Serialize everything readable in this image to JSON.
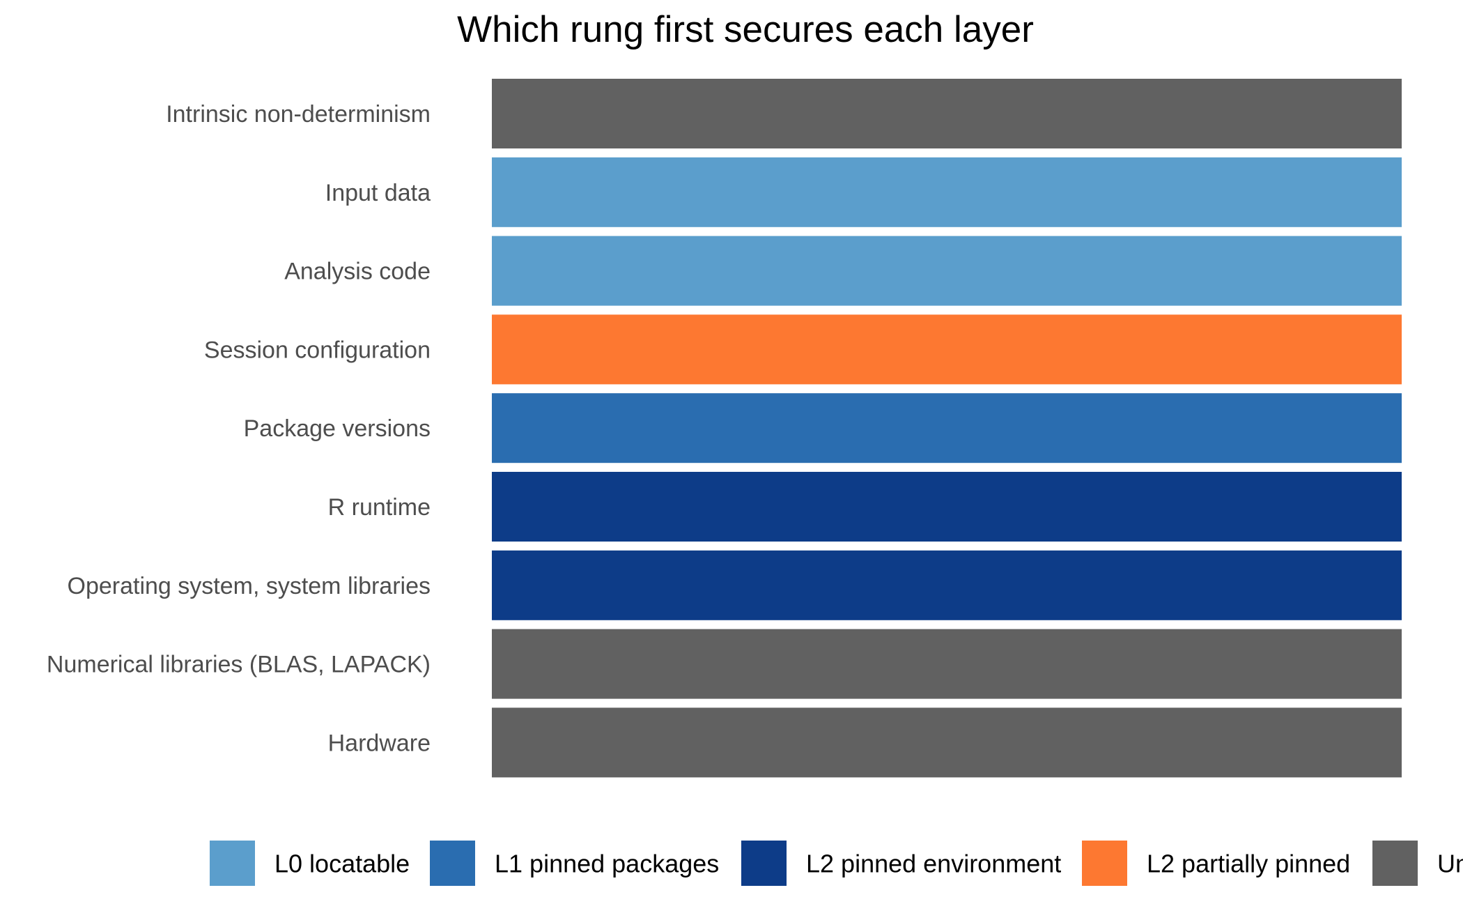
{
  "chart_data": {
    "type": "bar",
    "orientation": "horizontal",
    "title": "Which rung first secures each layer",
    "xlabel": "",
    "ylabel": "",
    "grid": false,
    "legend_position": "bottom",
    "categories": [
      "Intrinsic non-determinism",
      "Input data",
      "Analysis code",
      "Session configuration",
      "Package versions",
      "R runtime",
      "Operating system, system libraries",
      "Numerical libraries (BLAS, LAPACK)",
      "Hardware"
    ],
    "values": [
      1,
      1,
      1,
      1,
      1,
      1,
      1,
      1,
      1
    ],
    "rung": [
      "Un",
      "L0 locatable",
      "L0 locatable",
      "L2 partially pinned",
      "L1 pinned packages",
      "L2 pinned environment",
      "L2 pinned environment",
      "Un",
      "Un"
    ],
    "legend": [
      {
        "label": "L0 locatable",
        "color": "#5b9ecc"
      },
      {
        "label": "L1 pinned packages",
        "color": "#2a6db0"
      },
      {
        "label": "L2 pinned environment",
        "color": "#0d3c88"
      },
      {
        "label": "L2 partially pinned",
        "color": "#fd7831"
      },
      {
        "label": "Un",
        "color": "#616161"
      }
    ]
  }
}
